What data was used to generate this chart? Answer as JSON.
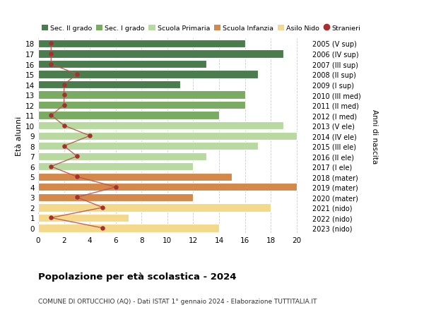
{
  "ages": [
    18,
    17,
    16,
    15,
    14,
    13,
    12,
    11,
    10,
    9,
    8,
    7,
    6,
    5,
    4,
    3,
    2,
    1,
    0
  ],
  "years": [
    "2005 (V sup)",
    "2006 (IV sup)",
    "2007 (III sup)",
    "2008 (II sup)",
    "2009 (I sup)",
    "2010 (III med)",
    "2011 (II med)",
    "2012 (I med)",
    "2013 (V ele)",
    "2014 (IV ele)",
    "2015 (III ele)",
    "2016 (II ele)",
    "2017 (I ele)",
    "2018 (mater)",
    "2019 (mater)",
    "2020 (mater)",
    "2021 (nido)",
    "2022 (nido)",
    "2023 (nido)"
  ],
  "bar_values": [
    16,
    19,
    13,
    17,
    11,
    16,
    16,
    14,
    19,
    20,
    17,
    13,
    12,
    15,
    20,
    12,
    18,
    7,
    14
  ],
  "bar_colors": [
    "#4a7c4e",
    "#4a7c4e",
    "#4a7c4e",
    "#4a7c4e",
    "#4a7c4e",
    "#7aab62",
    "#7aab62",
    "#7aab62",
    "#b8d9a0",
    "#b8d9a0",
    "#b8d9a0",
    "#b8d9a0",
    "#b8d9a0",
    "#d4894a",
    "#d4894a",
    "#d4894a",
    "#f5d98b",
    "#f5d98b",
    "#f5d98b"
  ],
  "stranieri_values": [
    1,
    1,
    1,
    3,
    2,
    2,
    2,
    1,
    2,
    4,
    2,
    3,
    1,
    3,
    6,
    3,
    5,
    1,
    5
  ],
  "legend_labels": [
    "Sec. II grado",
    "Sec. I grado",
    "Scuola Primaria",
    "Scuola Infanzia",
    "Asilo Nido",
    "Stranieri"
  ],
  "legend_colors": [
    "#4a7c4e",
    "#7aab62",
    "#b8d9a0",
    "#d4894a",
    "#f5d98b",
    "#a63030"
  ],
  "ylabel": "Età alunni",
  "right_label": "Anni di nascita",
  "title": "Popolazione per età scolastica - 2024",
  "subtitle": "COMUNE DI ORTUCCHIO (AQ) - Dati ISTAT 1° gennaio 2024 - Elaborazione TUTTITALIA.IT",
  "xlim": [
    0,
    21
  ],
  "xticks": [
    0,
    2,
    4,
    6,
    8,
    10,
    12,
    14,
    16,
    18,
    20
  ],
  "bg_color": "#ffffff",
  "stranieri_color": "#a63030",
  "stranieri_line_color": "#c0504d"
}
